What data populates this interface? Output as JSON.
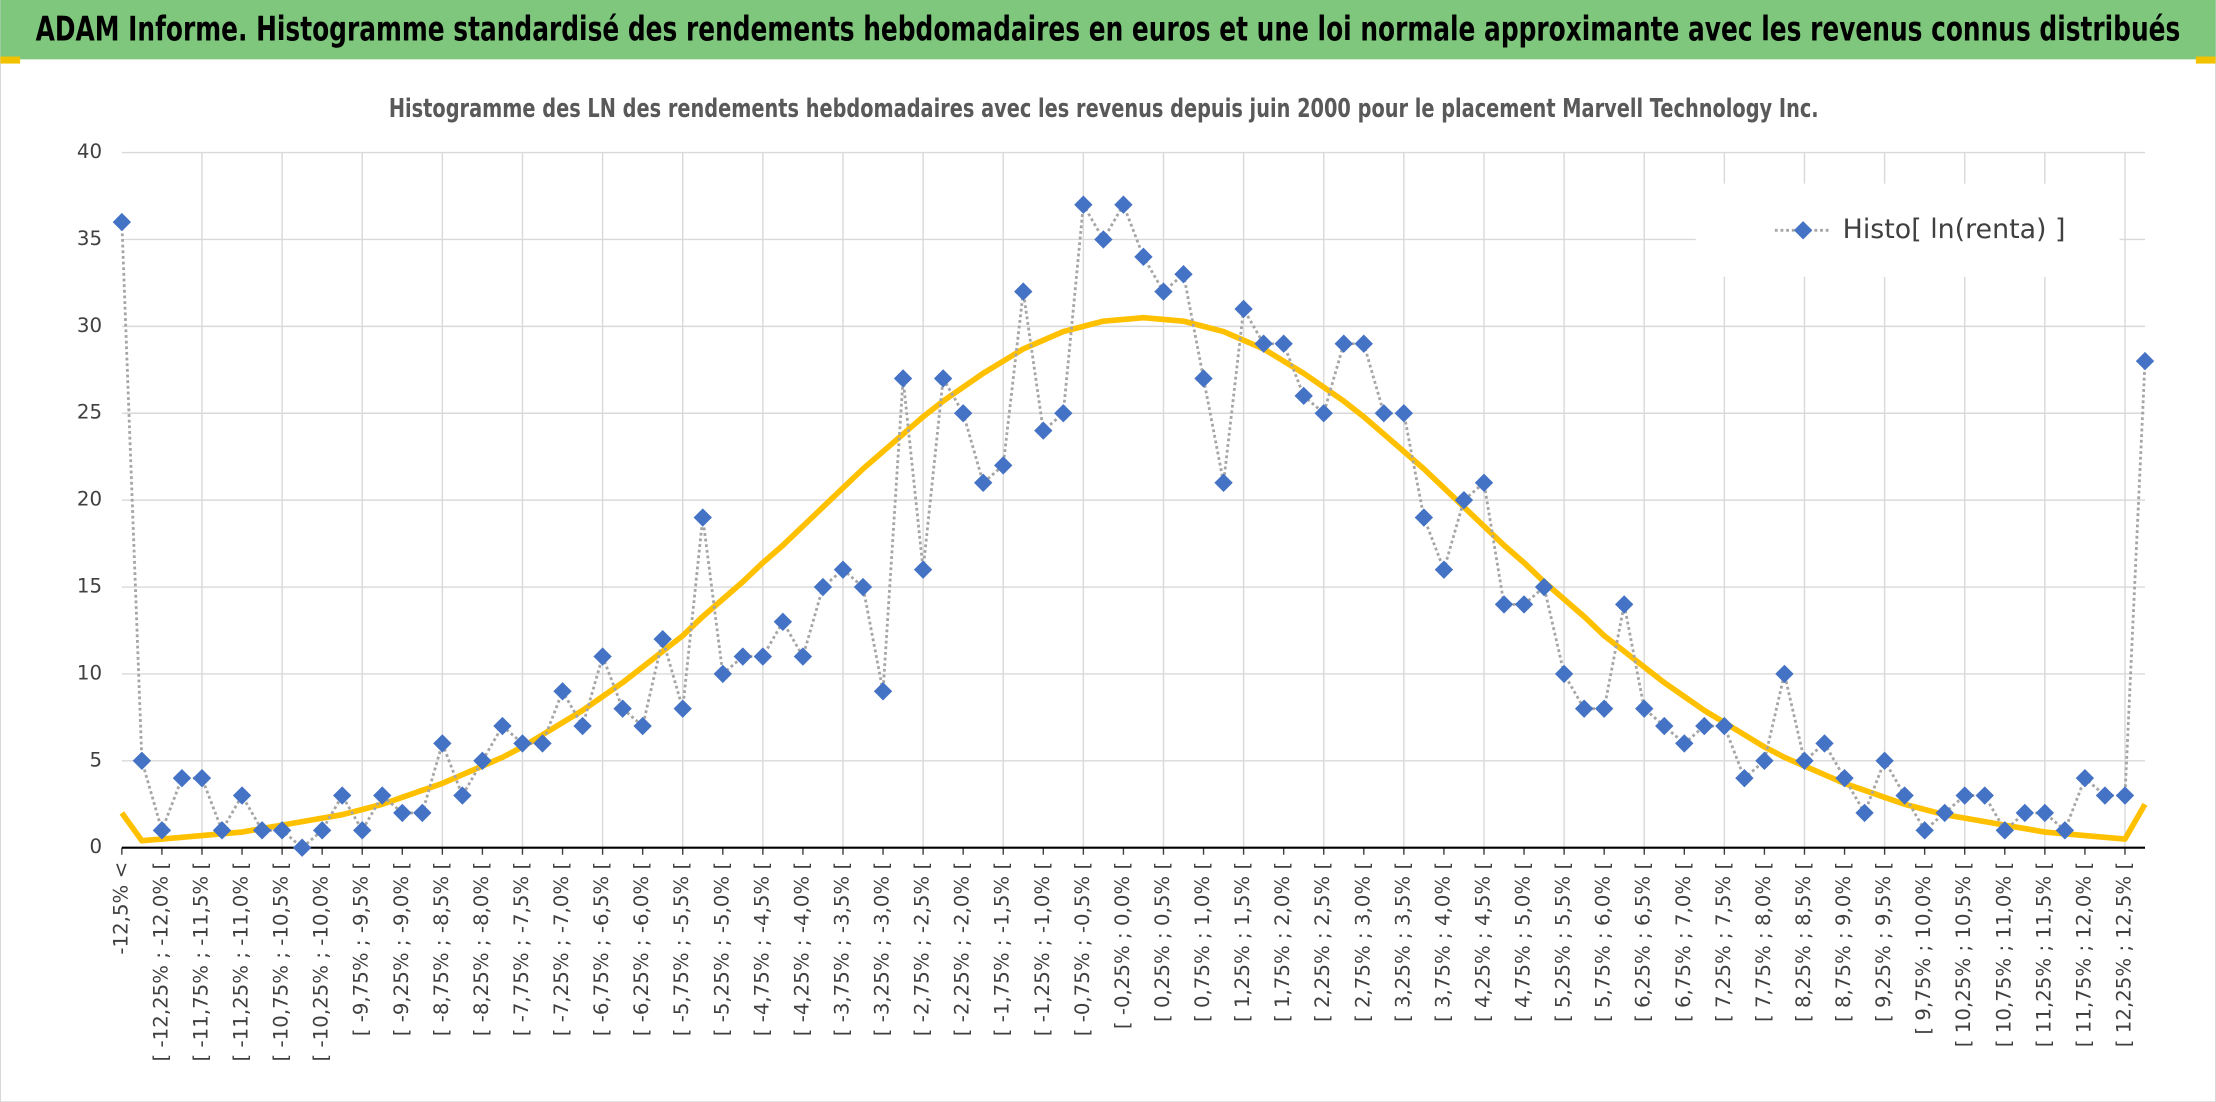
{
  "chart_data": {
    "type": "line",
    "title": "ADAM Informe. Histogramme standardisé des rendements hebdomadaires en euros et une loi normale approximante avec les revenus connus distribués",
    "subtitle": "Histogramme des LN des rendements hebdomadaires avec les revenus depuis juin 2000 pour le placement Marvell Technology Inc.",
    "categories": [
      "-12,5% <",
      null,
      "[ -12,25% ; -12,0% [",
      null,
      "[ -11,75% ; -11,5% [",
      null,
      "[ -11,25% ; -11,0% [",
      null,
      "[ -10,75% ; -10,5% [",
      null,
      "[ -10,25% ; -10,0% [",
      null,
      "[ -9,75% ; -9,5% [",
      null,
      "[ -9,25% ; -9,0% [",
      null,
      "[ -8,75% ; -8,5% [",
      null,
      "[ -8,25% ; -8,0% [",
      null,
      "[ -7,75% ; -7,5% [",
      null,
      "[ -7,25% ; -7,0% [",
      null,
      "[ -6,75% ; -6,5% [",
      null,
      "[ -6,25% ; -6,0% [",
      null,
      "[ -5,75% ; -5,5% [",
      null,
      "[ -5,25% ; -5,0% [",
      null,
      "[ -4,75% ; -4,5% [",
      null,
      "[ -4,25% ; -4,0% [",
      null,
      "[ -3,75% ; -3,5% [",
      null,
      "[ -3,25% ; -3,0% [",
      null,
      "[ -2,75% ; -2,5% [",
      null,
      "[ -2,25% ; -2,0% [",
      null,
      "[ -1,75% ; -1,5% [",
      null,
      "[ -1,25% ; -1,0% [",
      null,
      "[ -0,75% ; -0,5% [",
      null,
      "[ -0,25% ; 0,0% [",
      null,
      "[ 0,25% ; 0,5% [",
      null,
      "[ 0,75% ; 1,0% [",
      null,
      "[ 1,25% ; 1,5% [",
      null,
      "[ 1,75% ; 2,0% [",
      null,
      "[ 2,25% ; 2,5% [",
      null,
      "[ 2,75% ; 3,0% [",
      null,
      "[ 3,25% ; 3,5% [",
      null,
      "[ 3,75% ; 4,0% [",
      null,
      "[ 4,25% ; 4,5% [",
      null,
      "[ 4,75% ; 5,0% [",
      null,
      "[ 5,25% ; 5,5% [",
      null,
      "[ 5,75% ; 6,0% [",
      null,
      "[ 6,25% ; 6,5% [",
      null,
      "[ 6,75% ; 7,0% [",
      null,
      "[ 7,25% ; 7,5% [",
      null,
      "[ 7,75% ; 8,0% [",
      null,
      "[ 8,25% ; 8,5% [",
      null,
      "[ 8,75% ; 9,0% [",
      null,
      "[ 9,25% ; 9,5% [",
      null,
      "[ 9,75% ; 10,0% [",
      null,
      "[ 10,25% ; 10,5% [",
      null,
      "[ 10,75% ; 11,0% [",
      null,
      "[ 11,25% ; 11,5% [",
      null,
      "[ 11,75% ; 12,0% [",
      null,
      "[ 12,25% ; 12,5% [",
      null
    ],
    "series": [
      {
        "name": "Histo[ ln(renta) ]",
        "color": "#4472c4",
        "values": [
          36,
          5,
          1,
          4,
          4,
          1,
          3,
          1,
          1,
          0,
          1,
          3,
          1,
          3,
          2,
          2,
          6,
          3,
          5,
          7,
          6,
          6,
          9,
          7,
          11,
          8,
          7,
          12,
          8,
          19,
          10,
          11,
          11,
          13,
          11,
          15,
          16,
          15,
          9,
          27,
          16,
          27,
          25,
          21,
          22,
          32,
          24,
          25,
          37,
          35,
          37,
          34,
          32,
          33,
          27,
          21,
          31,
          29,
          29,
          26,
          25,
          29,
          29,
          25,
          25,
          19,
          16,
          20,
          21,
          14,
          14,
          15,
          10,
          8,
          8,
          14,
          8,
          7,
          6,
          7,
          7,
          4,
          5,
          10,
          5,
          6,
          4,
          2,
          5,
          3,
          1,
          2,
          3,
          3,
          1,
          2,
          2,
          1,
          4,
          3,
          3,
          28
        ]
      },
      {
        "color": "#ffc000",
        "values": [
          2.0,
          0.4,
          0.5,
          0.6,
          0.7,
          0.8,
          0.9,
          1.1,
          1.3,
          1.5,
          1.7,
          1.9,
          2.2,
          2.5,
          2.9,
          3.3,
          3.7,
          4.2,
          4.7,
          5.2,
          5.8,
          6.5,
          7.2,
          7.9,
          8.7,
          9.5,
          10.4,
          11.3,
          12.2,
          13.3,
          14.3,
          15.3,
          16.4,
          17.4,
          18.5,
          19.6,
          20.7,
          21.8,
          22.8,
          23.8,
          24.8,
          25.7,
          26.5,
          27.3,
          28.0,
          28.7,
          29.2,
          29.7,
          30.0,
          30.3,
          30.4,
          30.5,
          30.4,
          30.3,
          30.0,
          29.7,
          29.2,
          28.7,
          28.0,
          27.3,
          26.5,
          25.7,
          24.8,
          23.8,
          22.8,
          21.8,
          20.7,
          19.6,
          18.5,
          17.4,
          16.4,
          15.3,
          14.3,
          13.3,
          12.2,
          11.3,
          10.4,
          9.5,
          8.7,
          7.9,
          7.2,
          6.5,
          5.8,
          5.2,
          4.7,
          4.2,
          3.7,
          3.3,
          2.9,
          2.5,
          2.2,
          1.9,
          1.7,
          1.5,
          1.3,
          1.1,
          0.9,
          0.8,
          0.7,
          0.6,
          0.5,
          2.5
        ]
      }
    ],
    "ylim": [
      0,
      40
    ],
    "yticks": [
      0,
      5,
      10,
      15,
      20,
      25,
      30,
      35,
      40
    ],
    "grid": true,
    "legend": "top-right"
  }
}
